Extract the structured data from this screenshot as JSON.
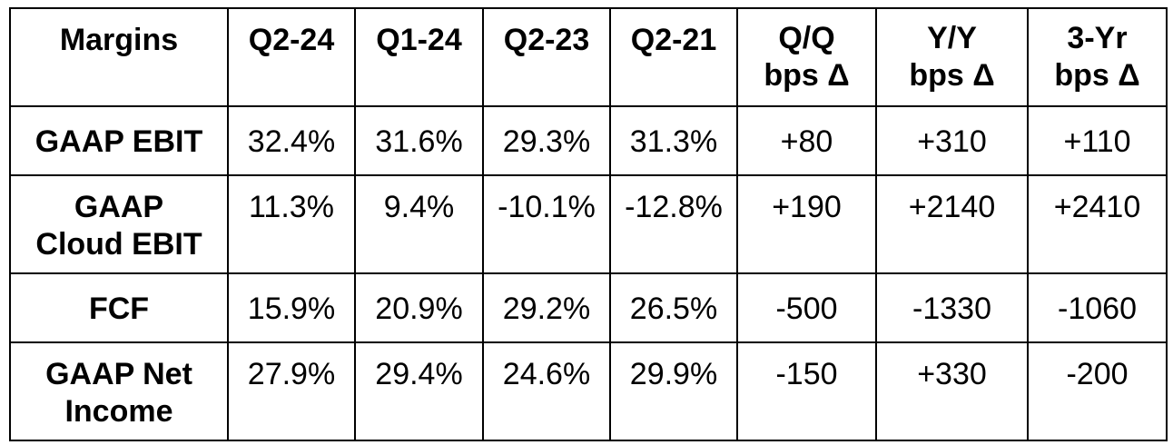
{
  "header": {
    "label": "Margins",
    "q2_24": "Q2-24",
    "q1_24": "Q1-24",
    "q2_23": "Q2-23",
    "q2_21": "Q2-21",
    "qq_line1": "Q/Q",
    "qq_line2": "bps Δ",
    "yy_line1": "Y/Y",
    "yy_line2": "bps Δ",
    "yr3_line1": "3-Yr",
    "yr3_line2": "bps Δ"
  },
  "rows": [
    {
      "label_line1": "GAAP EBIT",
      "label_line2": "",
      "q2_24": "32.4%",
      "q1_24": "31.6%",
      "q2_23": "29.3%",
      "q2_21": "31.3%",
      "qq": "+80",
      "yy": "+310",
      "yr3": "+110"
    },
    {
      "label_line1": "GAAP",
      "label_line2": "Cloud EBIT",
      "q2_24": "11.3%",
      "q1_24": "9.4%",
      "q2_23": "-10.1%",
      "q2_21": "-12.8%",
      "qq": "+190",
      "yy": "+2140",
      "yr3": "+2410"
    },
    {
      "label_line1": "FCF",
      "label_line2": "",
      "q2_24": "15.9%",
      "q1_24": "20.9%",
      "q2_23": "29.2%",
      "q2_21": "26.5%",
      "qq": "-500",
      "yy": "-1330",
      "yr3": "-1060"
    },
    {
      "label_line1": "GAAP Net",
      "label_line2": "Income",
      "q2_24": "27.9%",
      "q1_24": "29.4%",
      "q2_23": "24.6%",
      "q2_21": "29.9%",
      "qq": "-150",
      "yy": "+330",
      "yr3": "-200"
    }
  ]
}
